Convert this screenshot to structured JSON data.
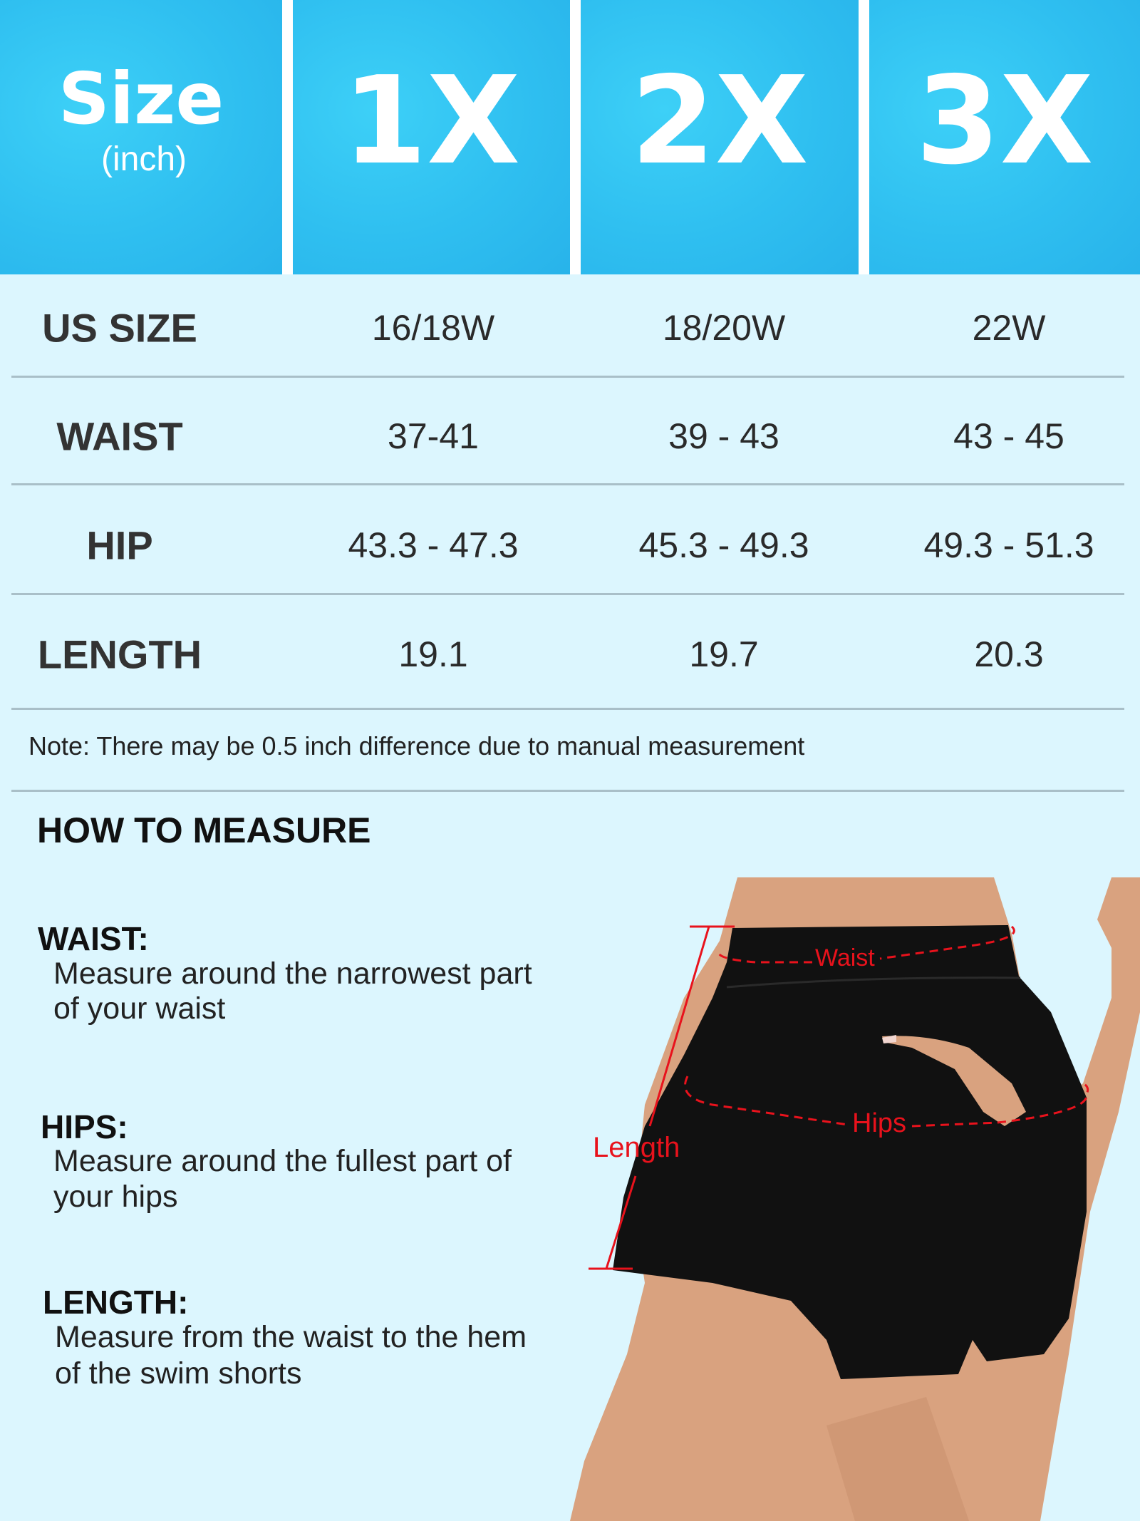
{
  "header": {
    "size_label": "Size",
    "unit_label": "(inch)",
    "sizes": [
      "1X",
      "2X",
      "3X"
    ]
  },
  "table": {
    "rows": [
      {
        "label": "US SIZE",
        "values": [
          "16/18W",
          "18/20W",
          "22W"
        ]
      },
      {
        "label": "WAIST",
        "values": [
          "37-41",
          "39 - 43",
          "43 - 45"
        ]
      },
      {
        "label": "HIP",
        "values": [
          "43.3 - 47.3",
          "45.3 - 49.3",
          "49.3 - 51.3"
        ]
      },
      {
        "label": "LENGTH",
        "values": [
          "19.1",
          "19.7",
          "20.3"
        ]
      }
    ],
    "note": "Note: There may be 0.5 inch difference due to manual measurement"
  },
  "measure": {
    "title": "HOW TO MEASURE",
    "items": [
      {
        "label": "WAIST:",
        "line1": "Measure around the narrowest part",
        "line2": "of your waist"
      },
      {
        "label": "HIPS:",
        "line1": "Measure around the fullest part of",
        "line2": "your hips"
      },
      {
        "label": "LENGTH:",
        "line1": "Measure from the waist to the hem",
        "line2": "of the swim shorts"
      }
    ]
  },
  "photo": {
    "waist_label": "Waist",
    "hips_label": "Hips",
    "length_label": "Length"
  },
  "colors": {
    "header_blue": "#2fbff0",
    "background": "#dcf6fe",
    "annotation_red": "#e8121c",
    "shorts": "#111111"
  }
}
